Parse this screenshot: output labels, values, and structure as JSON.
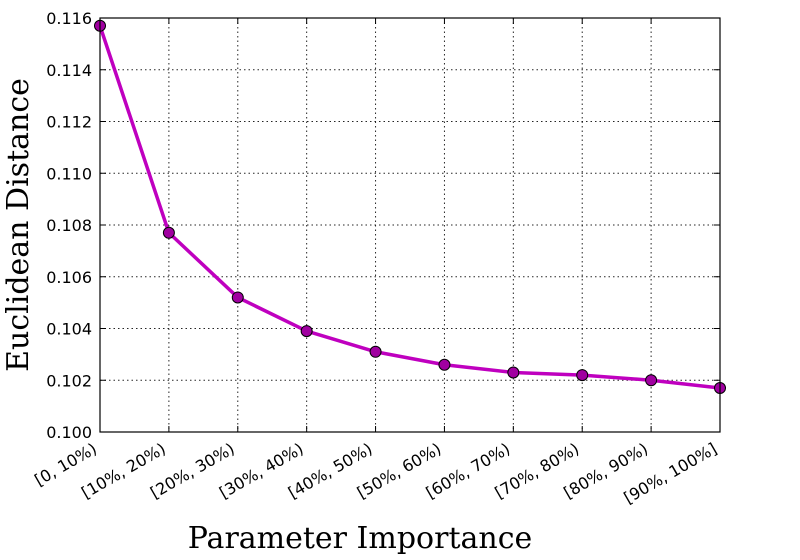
{
  "chart_data": {
    "type": "line",
    "title": "",
    "xlabel": "Parameter Importance",
    "ylabel": "Euclidean Distance",
    "categories": [
      "[0, 10%)",
      "[10%, 20%)",
      "[20%, 30%)",
      "[30%, 40%)",
      "[40%, 50%)",
      "[50%, 60%)",
      "[60%, 70%)",
      "[70%, 80%)",
      "[80%, 90%)",
      "[90%, 100%]"
    ],
    "series": [
      {
        "values": [
          0.1157,
          0.1077,
          0.1052,
          0.1039,
          0.1031,
          0.1026,
          0.1023,
          0.1022,
          0.102,
          0.1017
        ]
      }
    ],
    "ylim": [
      0.1,
      0.116
    ],
    "yticks": [
      "0.100",
      "0.102",
      "0.104",
      "0.106",
      "0.108",
      "0.110",
      "0.112",
      "0.114",
      "0.116"
    ],
    "grid": true,
    "legend": "none",
    "line_color": "#bf00bf",
    "marker_fill": "#a000a0"
  }
}
